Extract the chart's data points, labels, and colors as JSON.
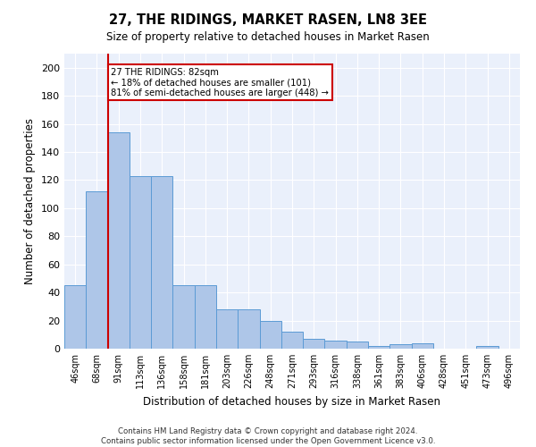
{
  "title": "27, THE RIDINGS, MARKET RASEN, LN8 3EE",
  "subtitle": "Size of property relative to detached houses in Market Rasen",
  "xlabel": "Distribution of detached houses by size in Market Rasen",
  "ylabel": "Number of detached properties",
  "categories": [
    "46sqm",
    "68sqm",
    "91sqm",
    "113sqm",
    "136sqm",
    "158sqm",
    "181sqm",
    "203sqm",
    "226sqm",
    "248sqm",
    "271sqm",
    "293sqm",
    "316sqm",
    "338sqm",
    "361sqm",
    "383sqm",
    "406sqm",
    "428sqm",
    "451sqm",
    "473sqm",
    "496sqm"
  ],
  "values": [
    45,
    112,
    154,
    123,
    123,
    45,
    45,
    28,
    28,
    20,
    12,
    7,
    6,
    5,
    2,
    3,
    4,
    0,
    0,
    2,
    0
  ],
  "bar_color": "#aec6e8",
  "bar_edge_color": "#5b9bd5",
  "red_line_index": 2,
  "annotation_text": "27 THE RIDINGS: 82sqm\n← 18% of detached houses are smaller (101)\n81% of semi-detached houses are larger (448) →",
  "annotation_box_color": "#ffffff",
  "annotation_box_edge": "#cc0000",
  "ylim": [
    0,
    210
  ],
  "yticks": [
    0,
    20,
    40,
    60,
    80,
    100,
    120,
    140,
    160,
    180,
    200
  ],
  "background_color": "#ffffff",
  "plot_bg_color": "#eaf0fb",
  "grid_color": "#ffffff",
  "footer": "Contains HM Land Registry data © Crown copyright and database right 2024.\nContains public sector information licensed under the Open Government Licence v3.0."
}
